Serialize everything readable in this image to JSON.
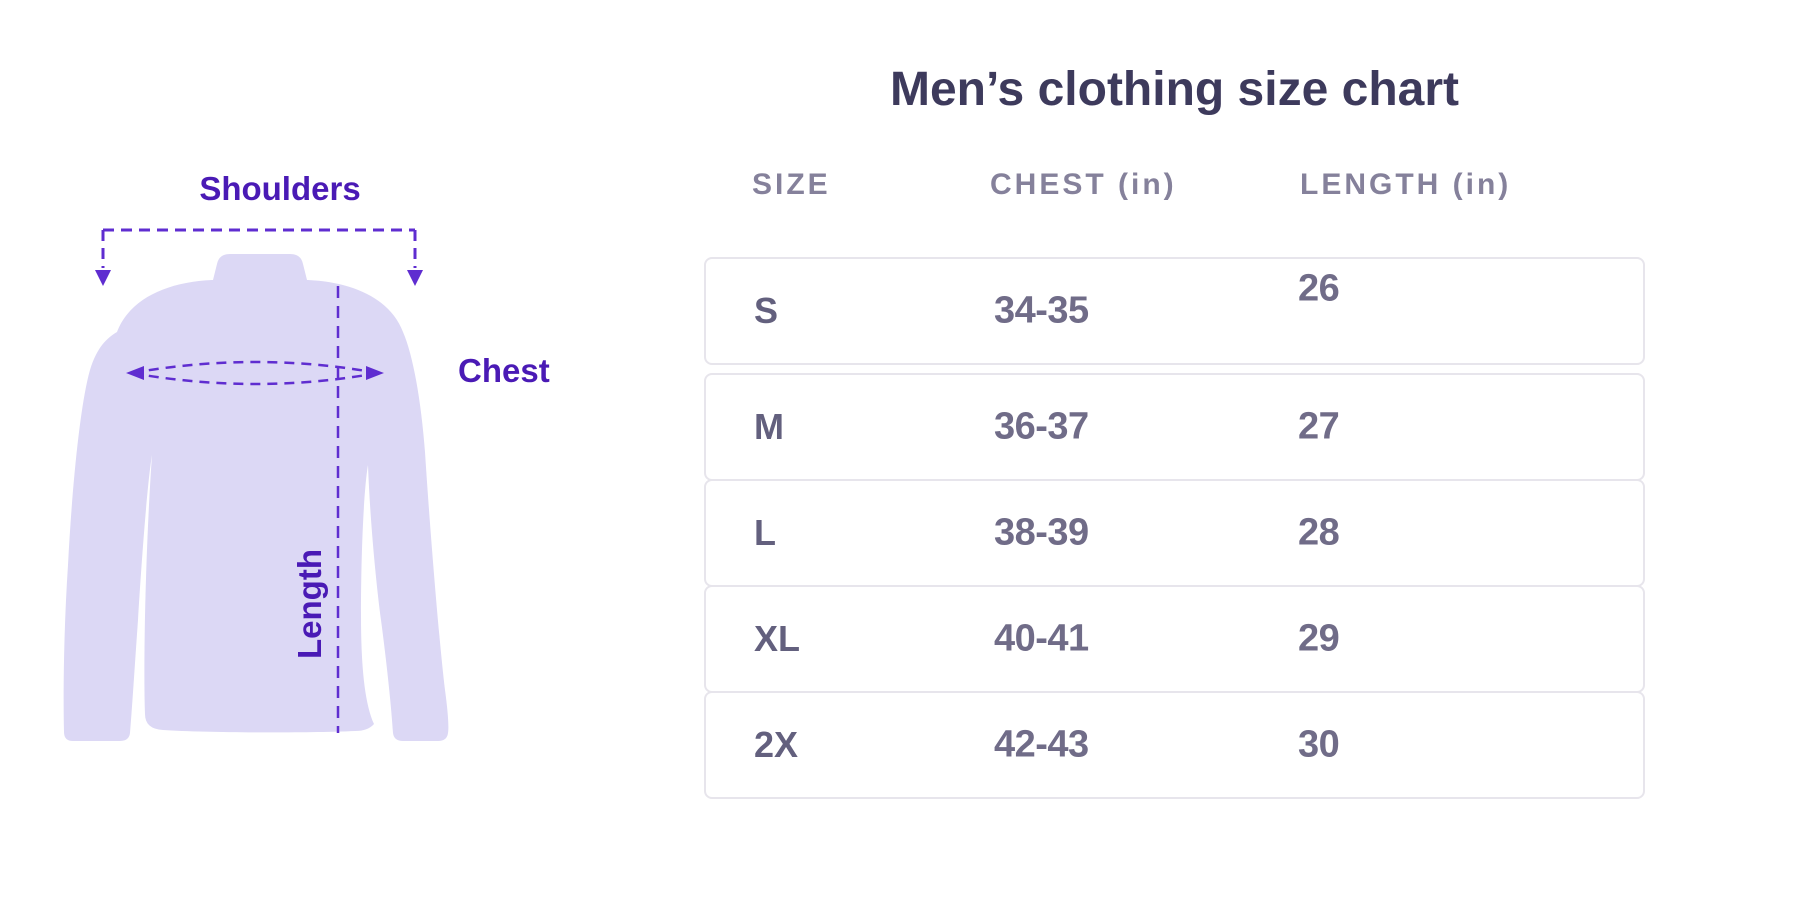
{
  "title": "Men’s clothing size chart",
  "illustration": {
    "shoulders_label": "Shoulders",
    "chest_label": "Chest",
    "length_label": "Length"
  },
  "chart_data": {
    "type": "table",
    "title": "Men’s clothing size chart",
    "columns": [
      "SIZE",
      "CHEST (in)",
      "LENGTH (in)"
    ],
    "rows": [
      [
        "S",
        "34-35",
        "26"
      ],
      [
        "M",
        "36-37",
        "27"
      ],
      [
        "L",
        "38-39",
        "28"
      ],
      [
        "XL",
        "40-41",
        "29"
      ],
      [
        "2X",
        "42-43",
        "30"
      ]
    ]
  },
  "colors": {
    "accent_purple_text": "#4A1AB5",
    "accent_purple_dash": "#5F2DD0",
    "shirt_fill": "#DCD8F5",
    "title_text": "#3D3A5C",
    "header_text": "#85819B",
    "size_text": "#63607E",
    "value_text": "#706C88",
    "card_border": "#E7E5EC",
    "background": "#FFFFFF"
  }
}
